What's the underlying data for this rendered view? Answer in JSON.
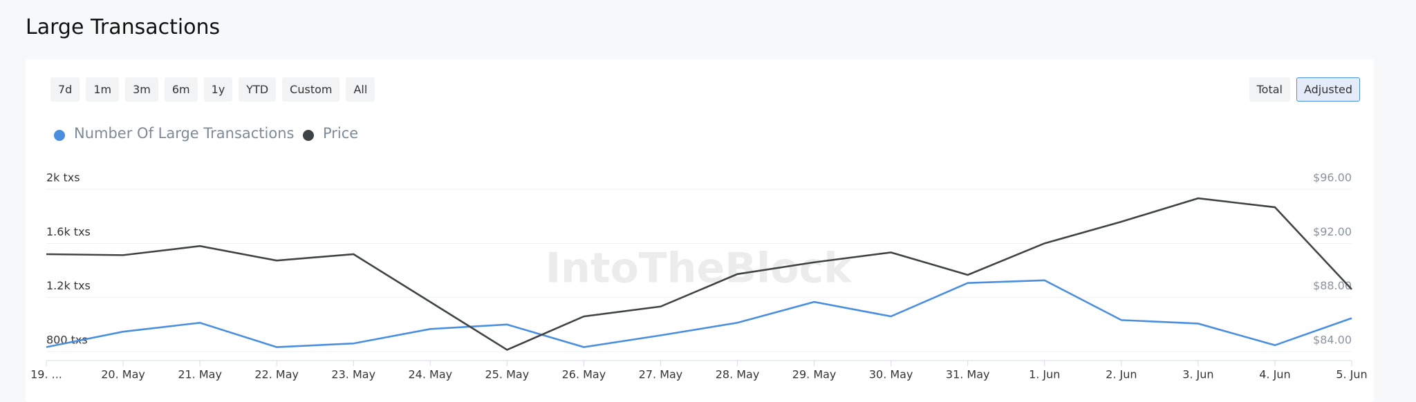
{
  "chart_data": {
    "type": "line",
    "title": "Large Transactions",
    "range_buttons": [
      "7d",
      "1m",
      "3m",
      "6m",
      "1y",
      "YTD",
      "Custom",
      "All"
    ],
    "mode_buttons": [
      "Total",
      "Adjusted"
    ],
    "active_mode": "Adjusted",
    "watermark": "IntoTheBlock",
    "categories": [
      "19. ...",
      "20. May",
      "21. May",
      "22. May",
      "23. May",
      "24. May",
      "25. May",
      "26. May",
      "27. May",
      "28. May",
      "29. May",
      "30. May",
      "31. May",
      "1. Jun",
      "2. Jun",
      "3. Jun",
      "4. Jun",
      "5. Jun"
    ],
    "series": [
      {
        "name": "Number Of Large Transactions",
        "color": "#4a8ee0",
        "values": [
          833,
          947,
          1013,
          833,
          860,
          967,
          1000,
          833,
          920,
          1013,
          1167,
          1060,
          1307,
          1327,
          1033,
          1007,
          847,
          1047
        ]
      },
      {
        "name": "Price",
        "color": "#404345",
        "axis": "y2",
        "values": [
          91.2,
          91.13,
          91.8,
          90.73,
          91.2,
          87.67,
          84.13,
          86.6,
          87.33,
          89.73,
          90.6,
          91.33,
          89.67,
          92.0,
          93.6,
          95.33,
          94.67,
          88.6
        ]
      }
    ],
    "ylim": [
      800,
      2000
    ],
    "yticks": [
      {
        "value": 800,
        "label": "800 txs"
      },
      {
        "value": 1200,
        "label": "1.2k txs"
      },
      {
        "value": 1600,
        "label": "1.6k txs"
      },
      {
        "value": 2000,
        "label": "2k txs"
      }
    ],
    "y2lim": [
      84,
      96
    ],
    "y2ticks": [
      {
        "value": 84,
        "label": "$84.00"
      },
      {
        "value": 88,
        "label": "$88.00"
      },
      {
        "value": 92,
        "label": "$92.00"
      },
      {
        "value": 96,
        "label": "$96.00"
      }
    ],
    "grid": true
  }
}
